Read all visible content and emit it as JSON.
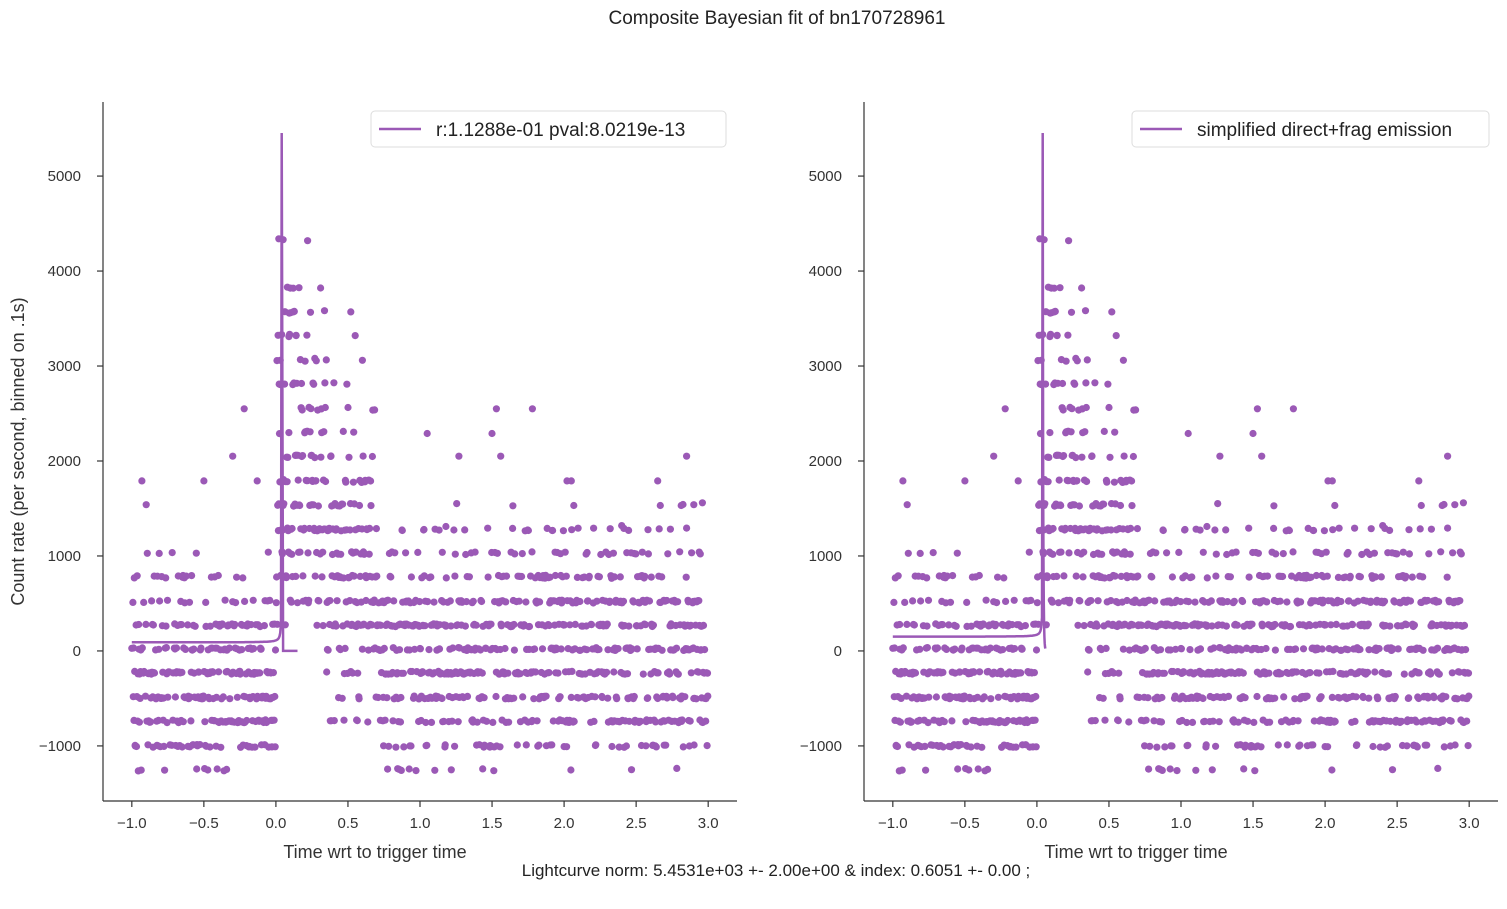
{
  "figure": {
    "suptitle": "Composite Bayesian fit of bn170728961",
    "footer": "Lightcurve norm: 5.4531e+03 +- 2.00e+00 & index: 0.6051 +- 0.00 ;"
  },
  "colors": {
    "series": "#9b59b6",
    "axis": "#333333",
    "text": "#222222"
  },
  "chart_data": [
    {
      "type": "scatter",
      "xlabel": "Time wrt to trigger time",
      "ylabel": "Count rate (per second, binned on .1s)",
      "xlim": [
        -1.2,
        3.2
      ],
      "ylim": [
        -1580,
        5780
      ],
      "xticks": [
        -1.0,
        -0.5,
        0.0,
        0.5,
        1.0,
        1.5,
        2.0,
        2.5,
        3.0
      ],
      "xtick_labels": [
        "−1.0",
        "−0.5",
        "0.0",
        "0.5",
        "1.0",
        "1.5",
        "2.0",
        "2.5",
        "3.0"
      ],
      "yticks": [
        -1000,
        0,
        1000,
        2000,
        3000,
        4000,
        5000
      ],
      "ytick_labels": [
        "−1000",
        "0",
        "1000",
        "2000",
        "3000",
        "4000",
        "5000"
      ],
      "grid": false,
      "legend": {
        "position": "top-right",
        "entries": [
          "r:1.1288e-01  pval:8.0219e-13"
        ]
      },
      "model": {
        "norm": 5453.1,
        "index": 0.6051,
        "t_peak": 0.04,
        "pre_floor": 90,
        "post_floor": 0,
        "pre_transition": 0.04
      }
    },
    {
      "type": "scatter",
      "xlabel": "Time wrt to trigger time",
      "ylabel": "",
      "xlim": [
        -1.2,
        3.2
      ],
      "ylim": [
        -1580,
        5780
      ],
      "xticks": [
        -1.0,
        -0.5,
        0.0,
        0.5,
        1.0,
        1.5,
        2.0,
        2.5,
        3.0
      ],
      "xtick_labels": [
        "−1.0",
        "−0.5",
        "0.0",
        "0.5",
        "1.0",
        "1.5",
        "2.0",
        "2.5",
        "3.0"
      ],
      "yticks": [
        -1000,
        0,
        1000,
        2000,
        3000,
        4000,
        5000
      ],
      "ytick_labels": [
        "−1000",
        "0",
        "1000",
        "2000",
        "3000",
        "4000",
        "5000"
      ],
      "grid": false,
      "legend": {
        "position": "top-right",
        "entries": [
          "simplified direct+frag emission"
        ]
      },
      "model": {
        "norm": 5453.1,
        "index": 0.6051,
        "t_peak": 0.04,
        "pre_floor": 150,
        "post_floor": 0,
        "pre_transition": 0.04
      }
    }
  ],
  "points": {
    "step": 0.0025,
    "t_start": -1.0,
    "t_end": 3.0,
    "levels": [
      -1250,
      -1000,
      -740,
      -490,
      -230,
      20,
      270,
      520,
      780,
      1030,
      1280,
      1540,
      1790,
      2050,
      2300,
      2550,
      2810,
      3060,
      3320,
      3570,
      3830,
      4340
    ],
    "outliers": [
      [
        -0.93,
        1790
      ],
      [
        -0.9,
        1540
      ],
      [
        -0.5,
        1790
      ],
      [
        -0.3,
        2050
      ],
      [
        -0.22,
        2550
      ],
      [
        -0.13,
        1790
      ],
      [
        0.22,
        4320
      ],
      [
        0.27,
        3080
      ],
      [
        0.52,
        3570
      ],
      [
        0.55,
        3320
      ],
      [
        0.6,
        3060
      ],
      [
        1.05,
        2290
      ],
      [
        1.27,
        2050
      ],
      [
        1.5,
        2290
      ],
      [
        1.53,
        2550
      ],
      [
        1.56,
        2050
      ],
      [
        1.78,
        2550
      ],
      [
        2.02,
        1790
      ],
      [
        2.05,
        1790
      ],
      [
        2.65,
        1790
      ],
      [
        2.85,
        2050
      ],
      [
        2.9,
        1540
      ],
      [
        2.96,
        1560
      ],
      [
        2.4,
        1320
      ],
      [
        1.18,
        1310
      ]
    ]
  }
}
